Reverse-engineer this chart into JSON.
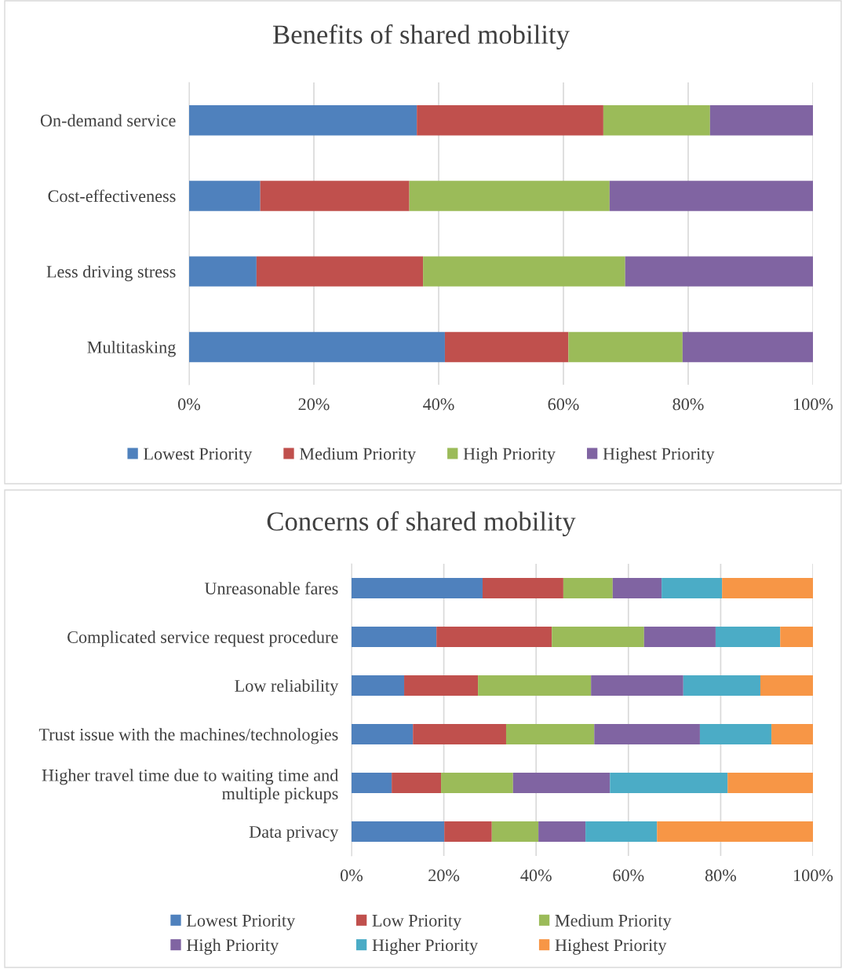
{
  "chart_data": [
    {
      "type": "bar",
      "orientation": "horizontal",
      "stacked": true,
      "title": "Benefits of shared mobility",
      "categories": [
        "On-demand service",
        "Cost-effectiveness",
        "Less driving stress",
        "Multitasking"
      ],
      "series": [
        {
          "name": "Lowest Priority",
          "color": "#4f81bd",
          "values": [
            36.5,
            11.4,
            10.8,
            41.0
          ]
        },
        {
          "name": "Medium Priority",
          "color": "#c0504d",
          "values": [
            29.9,
            23.9,
            26.7,
            19.8
          ]
        },
        {
          "name": "High Priority",
          "color": "#9bbb59",
          "values": [
            17.1,
            32.1,
            32.4,
            18.3
          ]
        },
        {
          "name": "Highest Priority",
          "color": "#8064a2",
          "values": [
            16.5,
            32.6,
            30.1,
            20.9
          ]
        }
      ],
      "xlim": [
        0,
        100
      ],
      "xticks": [
        {
          "value": 0,
          "label": "0%"
        },
        {
          "value": 20,
          "label": "20%"
        },
        {
          "value": 40,
          "label": "40%"
        },
        {
          "value": 60,
          "label": "60%"
        },
        {
          "value": 80,
          "label": "80%"
        },
        {
          "value": 100,
          "label": "100%"
        }
      ],
      "grid": "x",
      "legend": "bottom"
    },
    {
      "type": "bar",
      "orientation": "horizontal",
      "stacked": true,
      "title": "Concerns of shared mobility",
      "categories": [
        "Unreasonable fares",
        "Complicated service request procedure",
        "Low reliability",
        "Trust issue with the machines/technologies",
        "Higher travel time due to waiting time and\nmultiple pickups",
        "Data privacy"
      ],
      "series": [
        {
          "name": "Lowest Priority",
          "color": "#4f81bd",
          "values": [
            28.4,
            18.4,
            11.4,
            13.3,
            8.7,
            20.1
          ]
        },
        {
          "name": "Low Priority",
          "color": "#c0504d",
          "values": [
            17.5,
            25.0,
            16.0,
            20.2,
            10.7,
            10.3
          ]
        },
        {
          "name": "Medium Priority",
          "color": "#9bbb59",
          "values": [
            10.7,
            20.0,
            24.5,
            19.1,
            15.6,
            10.1
          ]
        },
        {
          "name": "High Priority",
          "color": "#8064a2",
          "values": [
            10.6,
            15.5,
            20.0,
            22.9,
            21.0,
            10.2
          ]
        },
        {
          "name": "Higher Priority",
          "color": "#4bacc6",
          "values": [
            13.1,
            14.0,
            16.7,
            15.5,
            25.5,
            15.5
          ]
        },
        {
          "name": "Highest Priority",
          "color": "#f79646",
          "values": [
            19.7,
            7.1,
            11.4,
            9.0,
            18.5,
            33.8
          ]
        }
      ],
      "xlim": [
        0,
        100
      ],
      "xticks": [
        {
          "value": 0,
          "label": "0%"
        },
        {
          "value": 20,
          "label": "20%"
        },
        {
          "value": 40,
          "label": "40%"
        },
        {
          "value": 60,
          "label": "60%"
        },
        {
          "value": 80,
          "label": "80%"
        },
        {
          "value": 100,
          "label": "100%"
        }
      ],
      "grid": "x",
      "legend": "bottom"
    }
  ]
}
